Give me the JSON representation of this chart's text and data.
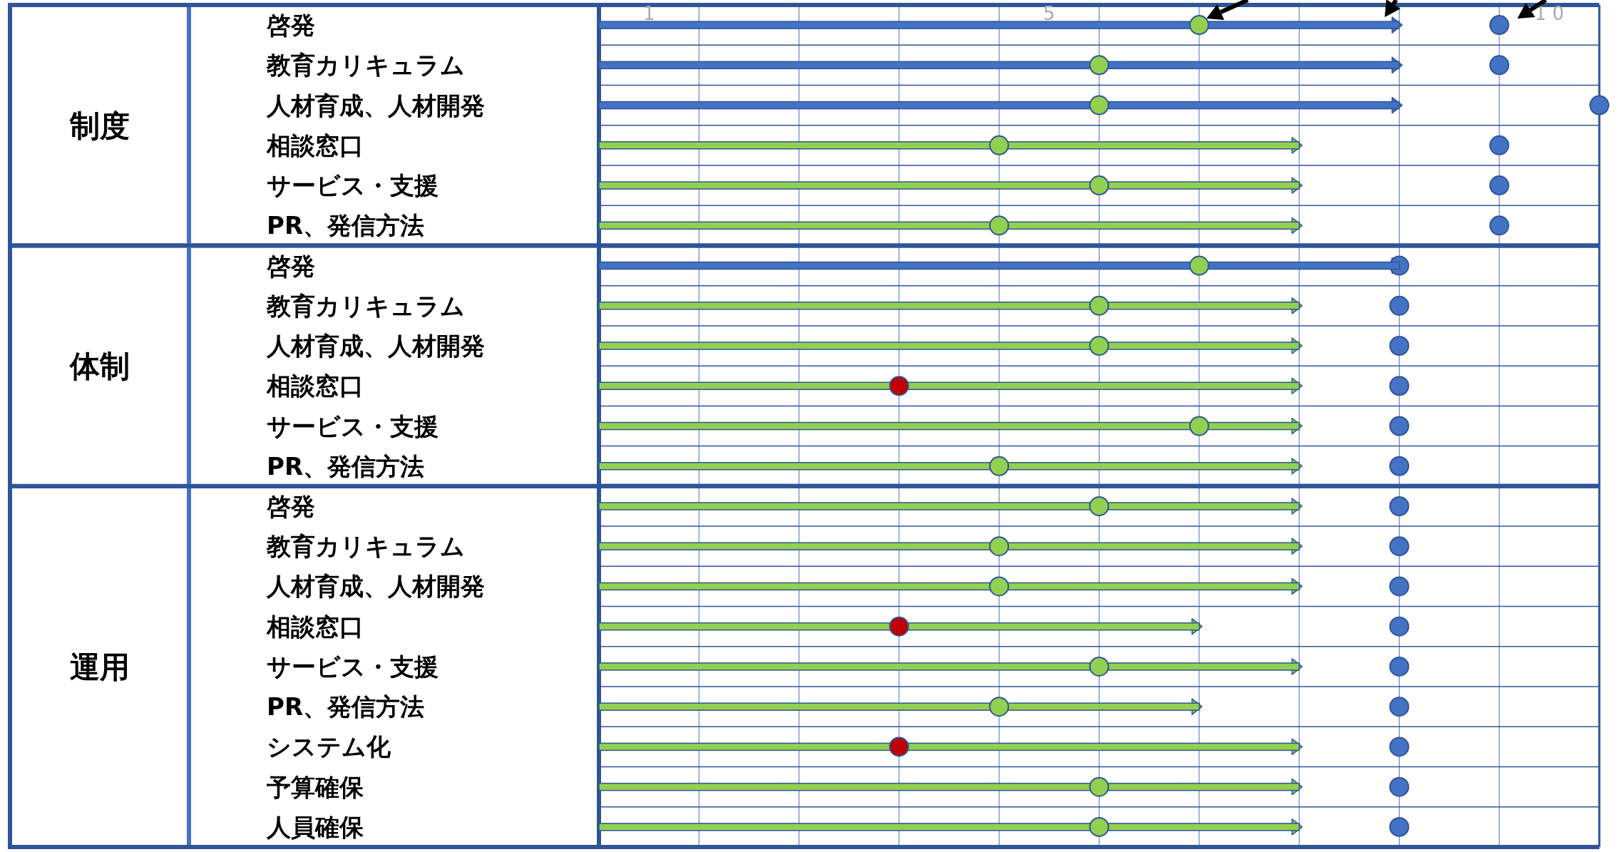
{
  "chart_data": [
    {
      "type": "bar",
      "orientation": "horizontal",
      "title": "制度",
      "categories": [
        "啓発",
        "教育カリキュラム",
        "人材育成、人材開発",
        "相談窓口",
        "サービス・支援",
        "PR、発信方法"
      ],
      "xlim": [
        0,
        10
      ],
      "xticks": [
        {
          "value": 0.5,
          "label": "1"
        },
        {
          "value": 4.5,
          "label": "5"
        },
        {
          "value": 9.5,
          "label": "1 0"
        },
        {
          "value": 1,
          "label": null
        },
        {
          "value": 2,
          "label": null
        },
        {
          "value": 3,
          "label": null
        },
        {
          "value": 4,
          "label": null
        },
        {
          "value": 5,
          "label": null
        },
        {
          "value": 6,
          "label": null
        },
        {
          "value": 7,
          "label": null
        },
        {
          "value": 8,
          "label": null
        },
        {
          "value": 9,
          "label": null
        }
      ],
      "grid": "x",
      "marker": "circle",
      "series": [
        {
          "colors": [
            "#4472c4",
            "#4472c4",
            "#4472c4",
            "#92d050",
            "#92d050",
            "#92d050"
          ],
          "values": [
            8,
            8,
            8,
            7,
            7,
            7
          ]
        },
        {
          "type": "scatter",
          "colors": [
            "#92d050",
            "#92d050",
            "#92d050",
            "#92d050",
            "#92d050",
            "#92d050"
          ],
          "values": [
            6,
            5,
            5,
            4,
            5,
            4
          ]
        },
        {
          "type": "scatter",
          "color": "#4472c4",
          "values": [
            9,
            9,
            10,
            9,
            9,
            9
          ]
        }
      ]
    },
    {
      "type": "bar",
      "orientation": "horizontal",
      "title": "体制",
      "categories": [
        "啓発",
        "教育カリキュラム",
        "人材育成、人材開発",
        "相談窓口",
        "サービス・支援",
        "PR、発信方法"
      ],
      "xlim": [
        0,
        10
      ],
      "xticks": [
        {
          "value": 1,
          "label": null
        },
        {
          "value": 2,
          "label": null
        },
        {
          "value": 3,
          "label": null
        },
        {
          "value": 4,
          "label": null
        },
        {
          "value": 5,
          "label": null
        },
        {
          "value": 6,
          "label": null
        },
        {
          "value": 7,
          "label": null
        },
        {
          "value": 8,
          "label": null
        },
        {
          "value": 9,
          "label": null
        }
      ],
      "tick_labels": "y",
      "grid": "x",
      "marker": "circle",
      "series": [
        {
          "colors": [
            "#4472c4",
            "#92d050",
            "#92d050",
            "#92d050",
            "#92d050",
            "#92d050"
          ],
          "values": [
            8,
            7,
            7,
            7,
            7,
            7
          ]
        },
        {
          "type": "scatter",
          "colors": [
            "#92d050",
            "#92d050",
            "#92d050",
            "#c00000",
            "#92d050",
            "#92d050"
          ],
          "values": [
            6,
            5,
            5,
            3,
            6,
            4
          ]
        },
        {
          "type": "scatter",
          "color": "#4472c4",
          "values": [
            8,
            8,
            8,
            8,
            8,
            8
          ]
        }
      ]
    },
    {
      "type": "bar",
      "orientation": "horizontal",
      "title": "運用",
      "categories": [
        "啓発",
        "教育カリキュラム",
        "人材育成、人材開発",
        "相談窓口",
        "サービス・支援",
        "PR、発信方法",
        "システム化",
        "予算確保",
        "人員確保"
      ],
      "xlim": [
        0,
        10
      ],
      "xticks": [
        {
          "value": 1,
          "label": null
        },
        {
          "value": 2,
          "label": null
        },
        {
          "value": 3,
          "label": null
        },
        {
          "value": 4,
          "label": null
        },
        {
          "value": 5,
          "label": null
        },
        {
          "value": 6,
          "label": null
        },
        {
          "value": 7,
          "label": null
        },
        {
          "value": 8,
          "label": null
        },
        {
          "value": 9,
          "label": null
        }
      ],
      "tick_labels": "y",
      "grid": "x",
      "marker": "circle",
      "series": [
        {
          "colors": [
            "#92d050",
            "#92d050",
            "#92d050",
            "#92d050",
            "#92d050",
            "#92d050",
            "#92d050",
            "#92d050",
            "#92d050"
          ],
          "values": [
            7,
            7,
            7,
            6,
            7,
            6,
            7,
            7,
            7
          ]
        },
        {
          "type": "scatter",
          "colors": [
            "#92d050",
            "#92d050",
            "#92d050",
            "#c00000",
            "#92d050",
            "#92d050",
            "#c00000",
            "#92d050",
            "#92d050"
          ],
          "values": [
            5,
            4,
            4,
            3,
            5,
            4,
            3,
            5,
            5
          ]
        },
        {
          "type": "scatter",
          "color": "#4472c4",
          "values": [
            8,
            8,
            8,
            8,
            8,
            8,
            8,
            8,
            8
          ]
        }
      ]
    }
  ]
}
